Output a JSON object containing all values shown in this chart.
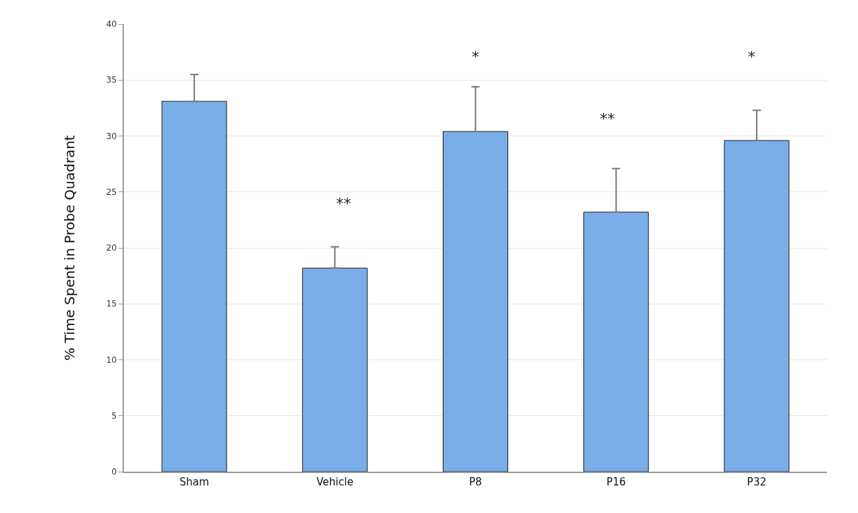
{
  "chart_data": {
    "type": "bar",
    "ylabel": "% Time Spent in Probe Quadrant",
    "categories": [
      "Sham",
      "Vehicle",
      "P8",
      "P16",
      "P32"
    ],
    "values": [
      33.1,
      18.2,
      30.4,
      23.2,
      29.6
    ],
    "errors": [
      [
        33.1,
        35.5
      ],
      [
        18.2,
        20.1
      ],
      [
        30.4,
        34.4
      ],
      [
        23.2,
        27.1
      ],
      [
        29.6,
        32.3
      ]
    ],
    "color": "#7aaee8",
    "ylim": [
      0,
      40
    ],
    "yticks": [
      0,
      5,
      10,
      15,
      20,
      25,
      30,
      35,
      40
    ],
    "grid": "y",
    "annotations": [
      "**",
      "*",
      "**",
      "*"
    ]
  }
}
